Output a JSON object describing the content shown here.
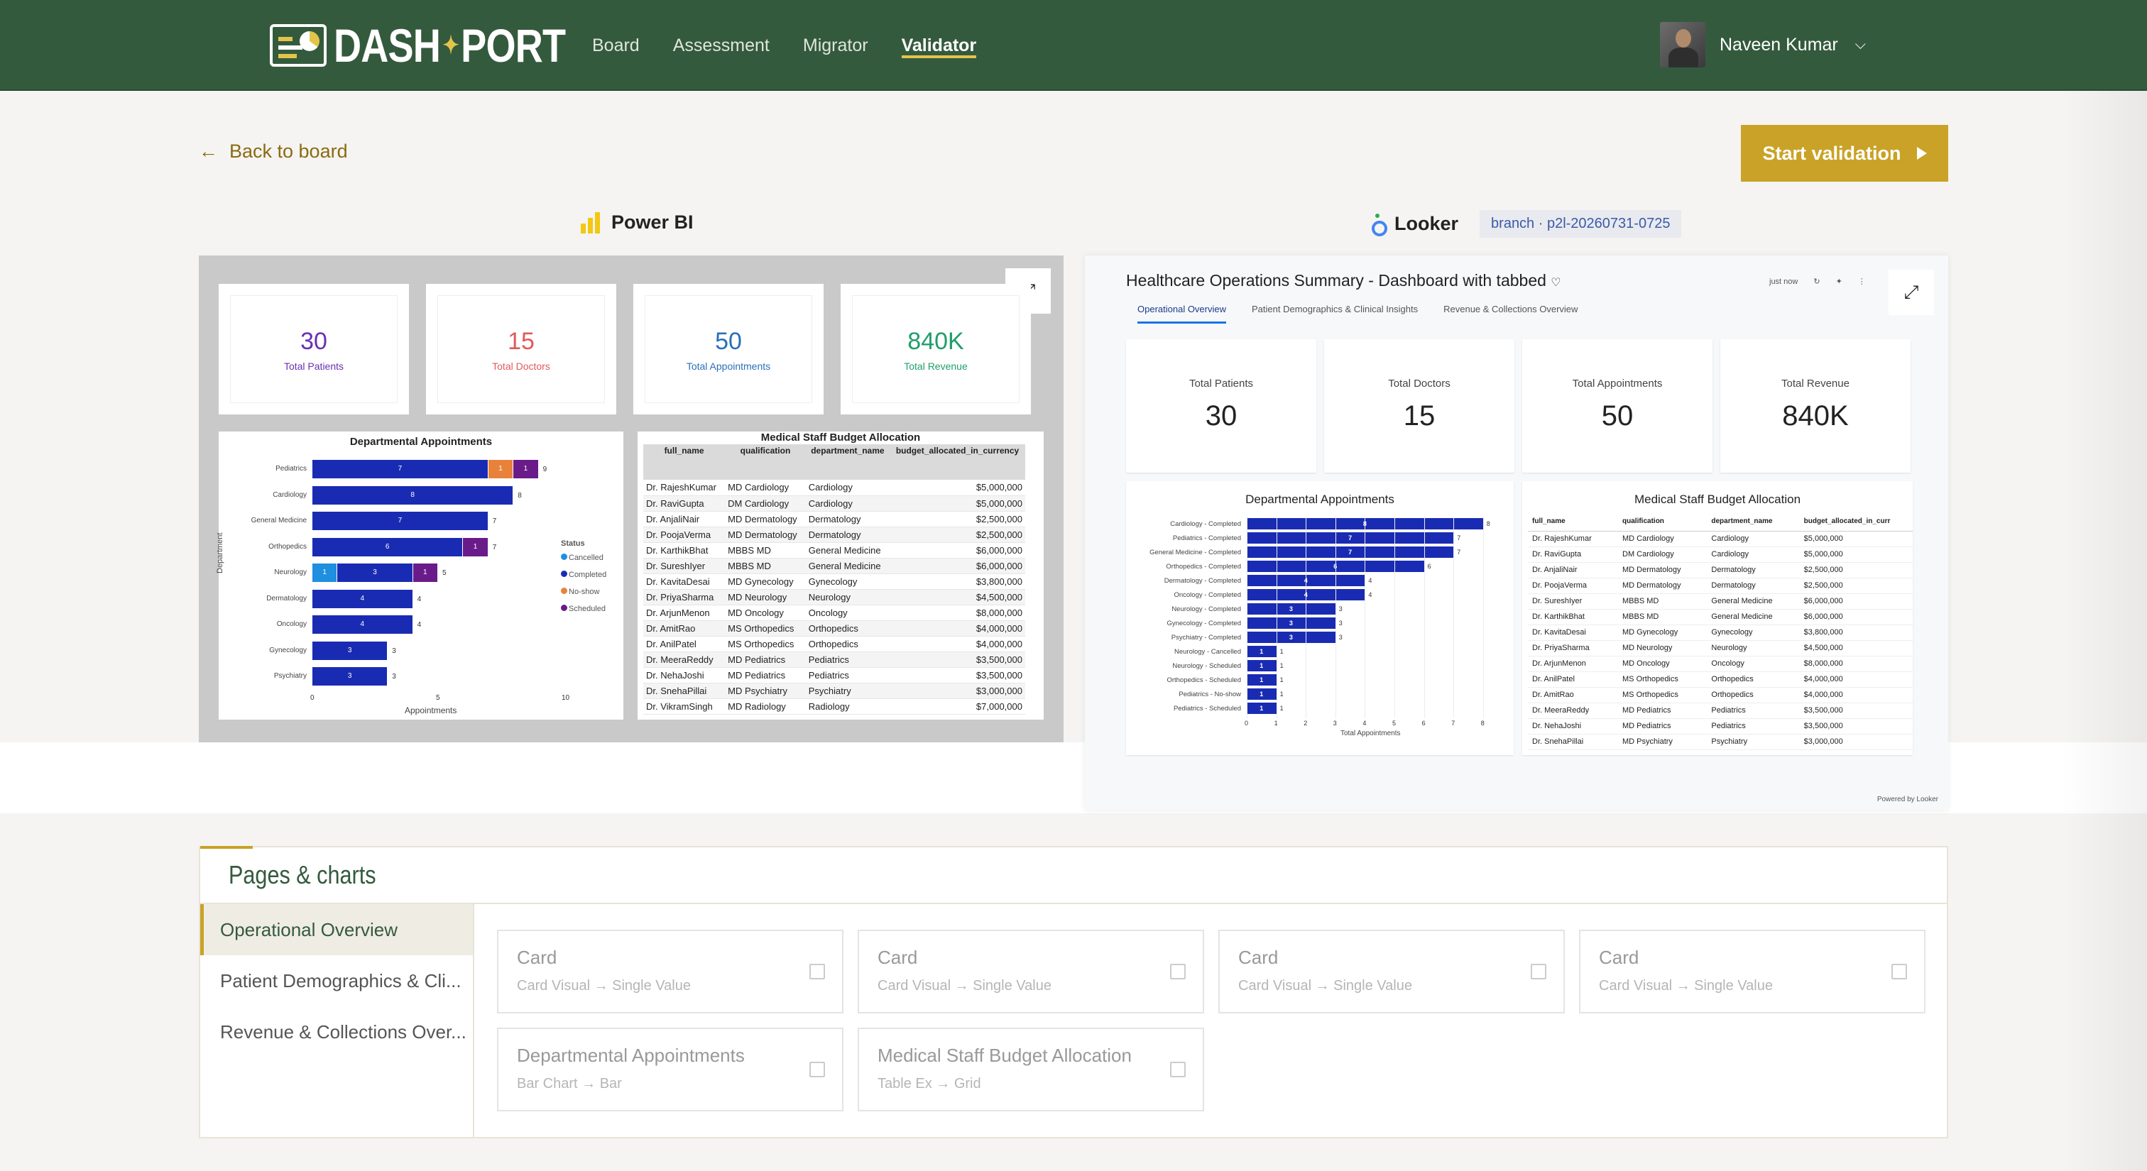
{
  "nav": {
    "logo": {
      "left": "DASH",
      "right": "PORT"
    },
    "items": [
      "Board",
      "Assessment",
      "Migrator",
      "Validator"
    ],
    "active": "Validator",
    "user": "Naveen Kumar"
  },
  "back_label": "Back to board",
  "start_label": "Start validation",
  "powerbi": {
    "label": "Power BI",
    "cards": [
      {
        "value": "30",
        "label": "Total Patients",
        "color": "#6a2fb3"
      },
      {
        "value": "15",
        "label": "Total Doctors",
        "color": "#e05a5a"
      },
      {
        "value": "50",
        "label": "Total Appointments",
        "color": "#2a6fb8"
      },
      {
        "value": "840K",
        "label": "Total Revenue",
        "color": "#1f9e6b"
      }
    ],
    "bar_title": "Departmental Appointments",
    "bar_ylabel": "Department",
    "bar_xlabel": "Appointments",
    "bar_ticks": [
      "0",
      "5",
      "10"
    ],
    "legend_title": "Status",
    "legend": [
      {
        "name": "Cancelled",
        "color": "#1f8fe0"
      },
      {
        "name": "Completed",
        "color": "#1a2bb3"
      },
      {
        "name": "No-show",
        "color": "#e8823a"
      },
      {
        "name": "Scheduled",
        "color": "#6a1b8a"
      }
    ],
    "bars": [
      {
        "dept": "Pediatrics",
        "total": "9",
        "segs": [
          {
            "v": 7,
            "c": "#1a2bb3",
            "t": "7"
          },
          {
            "v": 1,
            "c": "#e8823a",
            "t": "1"
          },
          {
            "v": 1,
            "c": "#6a1b8a",
            "t": "1"
          }
        ]
      },
      {
        "dept": "Cardiology",
        "total": "8",
        "segs": [
          {
            "v": 8,
            "c": "#1a2bb3",
            "t": "8"
          }
        ]
      },
      {
        "dept": "General Medicine",
        "total": "7",
        "segs": [
          {
            "v": 7,
            "c": "#1a2bb3",
            "t": "7"
          }
        ]
      },
      {
        "dept": "Orthopedics",
        "total": "7",
        "segs": [
          {
            "v": 6,
            "c": "#1a2bb3",
            "t": "6"
          },
          {
            "v": 1,
            "c": "#6a1b8a",
            "t": "1"
          }
        ]
      },
      {
        "dept": "Neurology",
        "total": "5",
        "segs": [
          {
            "v": 1,
            "c": "#1f8fe0",
            "t": "1"
          },
          {
            "v": 3,
            "c": "#1a2bb3",
            "t": "3"
          },
          {
            "v": 1,
            "c": "#6a1b8a",
            "t": "1"
          }
        ]
      },
      {
        "dept": "Dermatology",
        "total": "4",
        "segs": [
          {
            "v": 4,
            "c": "#1a2bb3",
            "t": "4"
          }
        ]
      },
      {
        "dept": "Oncology",
        "total": "4",
        "segs": [
          {
            "v": 4,
            "c": "#1a2bb3",
            "t": "4"
          }
        ]
      },
      {
        "dept": "Gynecology",
        "total": "3",
        "segs": [
          {
            "v": 3,
            "c": "#1a2bb3",
            "t": "3"
          }
        ]
      },
      {
        "dept": "Psychiatry",
        "total": "3",
        "segs": [
          {
            "v": 3,
            "c": "#1a2bb3",
            "t": "3"
          }
        ]
      }
    ],
    "table_title": "Medical Staff Budget Allocation",
    "table_headers": [
      "full_name",
      "qualification",
      "department_name",
      "budget_allocated_in_currency"
    ],
    "table_rows": [
      [
        "Dr. RajeshKumar",
        "MD Cardiology",
        "Cardiology",
        "$5,000,000"
      ],
      [
        "Dr. RaviGupta",
        "DM Cardiology",
        "Cardiology",
        "$5,000,000"
      ],
      [
        "Dr. AnjaliNair",
        "MD Dermatology",
        "Dermatology",
        "$2,500,000"
      ],
      [
        "Dr. PoojaVerma",
        "MD Dermatology",
        "Dermatology",
        "$2,500,000"
      ],
      [
        "Dr. KarthikBhat",
        "MBBS MD",
        "General Medicine",
        "$6,000,000"
      ],
      [
        "Dr. SureshIyer",
        "MBBS MD",
        "General Medicine",
        "$6,000,000"
      ],
      [
        "Dr. KavitaDesai",
        "MD Gynecology",
        "Gynecology",
        "$3,800,000"
      ],
      [
        "Dr. PriyaSharma",
        "MD Neurology",
        "Neurology",
        "$4,500,000"
      ],
      [
        "Dr. ArjunMenon",
        "MD Oncology",
        "Oncology",
        "$8,000,000"
      ],
      [
        "Dr. AmitRao",
        "MS Orthopedics",
        "Orthopedics",
        "$4,000,000"
      ],
      [
        "Dr. AnilPatel",
        "MS Orthopedics",
        "Orthopedics",
        "$4,000,000"
      ],
      [
        "Dr. MeeraReddy",
        "MD Pediatrics",
        "Pediatrics",
        "$3,500,000"
      ],
      [
        "Dr. NehaJoshi",
        "MD Pediatrics",
        "Pediatrics",
        "$3,500,000"
      ],
      [
        "Dr. SnehaPillai",
        "MD Psychiatry",
        "Psychiatry",
        "$3,000,000"
      ],
      [
        "Dr. VikramSingh",
        "MD Radiology",
        "Radiology",
        "$7,000,000"
      ]
    ]
  },
  "looker": {
    "label": "Looker",
    "branch": "branch · p2l-20260731-0725",
    "title": "Healthcare Operations Summary - Dashboard with tabbed",
    "updated": "just now",
    "tabs": [
      "Operational Overview",
      "Patient Demographics & Clinical Insights",
      "Revenue & Collections Overview"
    ],
    "cards": [
      {
        "label": "Total Patients",
        "value": "30"
      },
      {
        "label": "Total Doctors",
        "value": "15"
      },
      {
        "label": "Total Appointments",
        "value": "50"
      },
      {
        "label": "Total Revenue",
        "value": "840K"
      }
    ],
    "bar_title": "Departmental Appointments",
    "bar_xlabel": "Total Appointments",
    "bar_ticks": [
      "0",
      "1",
      "2",
      "3",
      "4",
      "5",
      "6",
      "7",
      "8"
    ],
    "bars": [
      {
        "label": "Cardiology - Completed",
        "v": 8,
        "t": "8"
      },
      {
        "label": "Pediatrics - Completed",
        "v": 7,
        "t": "7"
      },
      {
        "label": "General Medicine - Completed",
        "v": 7,
        "t": "7"
      },
      {
        "label": "Orthopedics - Completed",
        "v": 6,
        "t": "6"
      },
      {
        "label": "Dermatology - Completed",
        "v": 4,
        "t": "4"
      },
      {
        "label": "Oncology - Completed",
        "v": 4,
        "t": "4"
      },
      {
        "label": "Neurology - Completed",
        "v": 3,
        "t": "3"
      },
      {
        "label": "Gynecology - Completed",
        "v": 3,
        "t": "3"
      },
      {
        "label": "Psychiatry - Completed",
        "v": 3,
        "t": "3"
      },
      {
        "label": "Neurology - Cancelled",
        "v": 1,
        "t": "1"
      },
      {
        "label": "Neurology - Scheduled",
        "v": 1,
        "t": "1"
      },
      {
        "label": "Orthopedics - Scheduled",
        "v": 1,
        "t": "1"
      },
      {
        "label": "Pediatrics - No-show",
        "v": 1,
        "t": "1"
      },
      {
        "label": "Pediatrics - Scheduled",
        "v": 1,
        "t": "1"
      }
    ],
    "table_title": "Medical Staff Budget Allocation",
    "table_headers": [
      "full_name",
      "qualification",
      "department_name",
      "budget_allocated_in_curr"
    ],
    "table_rows": [
      [
        "Dr. RajeshKumar",
        "MD Cardiology",
        "Cardiology",
        "$5,000,000"
      ],
      [
        "Dr. RaviGupta",
        "DM Cardiology",
        "Cardiology",
        "$5,000,000"
      ],
      [
        "Dr. AnjaliNair",
        "MD Dermatology",
        "Dermatology",
        "$2,500,000"
      ],
      [
        "Dr. PoojaVerma",
        "MD Dermatology",
        "Dermatology",
        "$2,500,000"
      ],
      [
        "Dr. SureshIyer",
        "MBBS MD",
        "General Medicine",
        "$6,000,000"
      ],
      [
        "Dr. KarthikBhat",
        "MBBS MD",
        "General Medicine",
        "$6,000,000"
      ],
      [
        "Dr. KavitaDesai",
        "MD Gynecology",
        "Gynecology",
        "$3,800,000"
      ],
      [
        "Dr. PriyaSharma",
        "MD Neurology",
        "Neurology",
        "$4,500,000"
      ],
      [
        "Dr. ArjunMenon",
        "MD Oncology",
        "Oncology",
        "$8,000,000"
      ],
      [
        "Dr. AnilPatel",
        "MS Orthopedics",
        "Orthopedics",
        "$4,000,000"
      ],
      [
        "Dr. AmitRao",
        "MS Orthopedics",
        "Orthopedics",
        "$4,000,000"
      ],
      [
        "Dr. MeeraReddy",
        "MD Pediatrics",
        "Pediatrics",
        "$3,500,000"
      ],
      [
        "Dr. NehaJoshi",
        "MD Pediatrics",
        "Pediatrics",
        "$3,500,000"
      ],
      [
        "Dr. SnehaPillai",
        "MD Psychiatry",
        "Psychiatry",
        "$3,000,000"
      ]
    ],
    "powered": "Powered by Looker"
  },
  "pages": {
    "title": "Pages & charts",
    "side": [
      "Operational Overview",
      "Patient Demographics & Cli...",
      "Revenue & Collections Over..."
    ],
    "visuals": [
      {
        "title": "Card",
        "sub": "Card Visual → Single Value"
      },
      {
        "title": "Card",
        "sub": "Card Visual → Single Value"
      },
      {
        "title": "Card",
        "sub": "Card Visual → Single Value"
      },
      {
        "title": "Card",
        "sub": "Card Visual → Single Value"
      },
      {
        "title": "Departmental Appointments",
        "sub": "Bar Chart → Bar"
      },
      {
        "title": "Medical Staff Budget Allocation",
        "sub": "Table Ex → Grid"
      }
    ]
  }
}
